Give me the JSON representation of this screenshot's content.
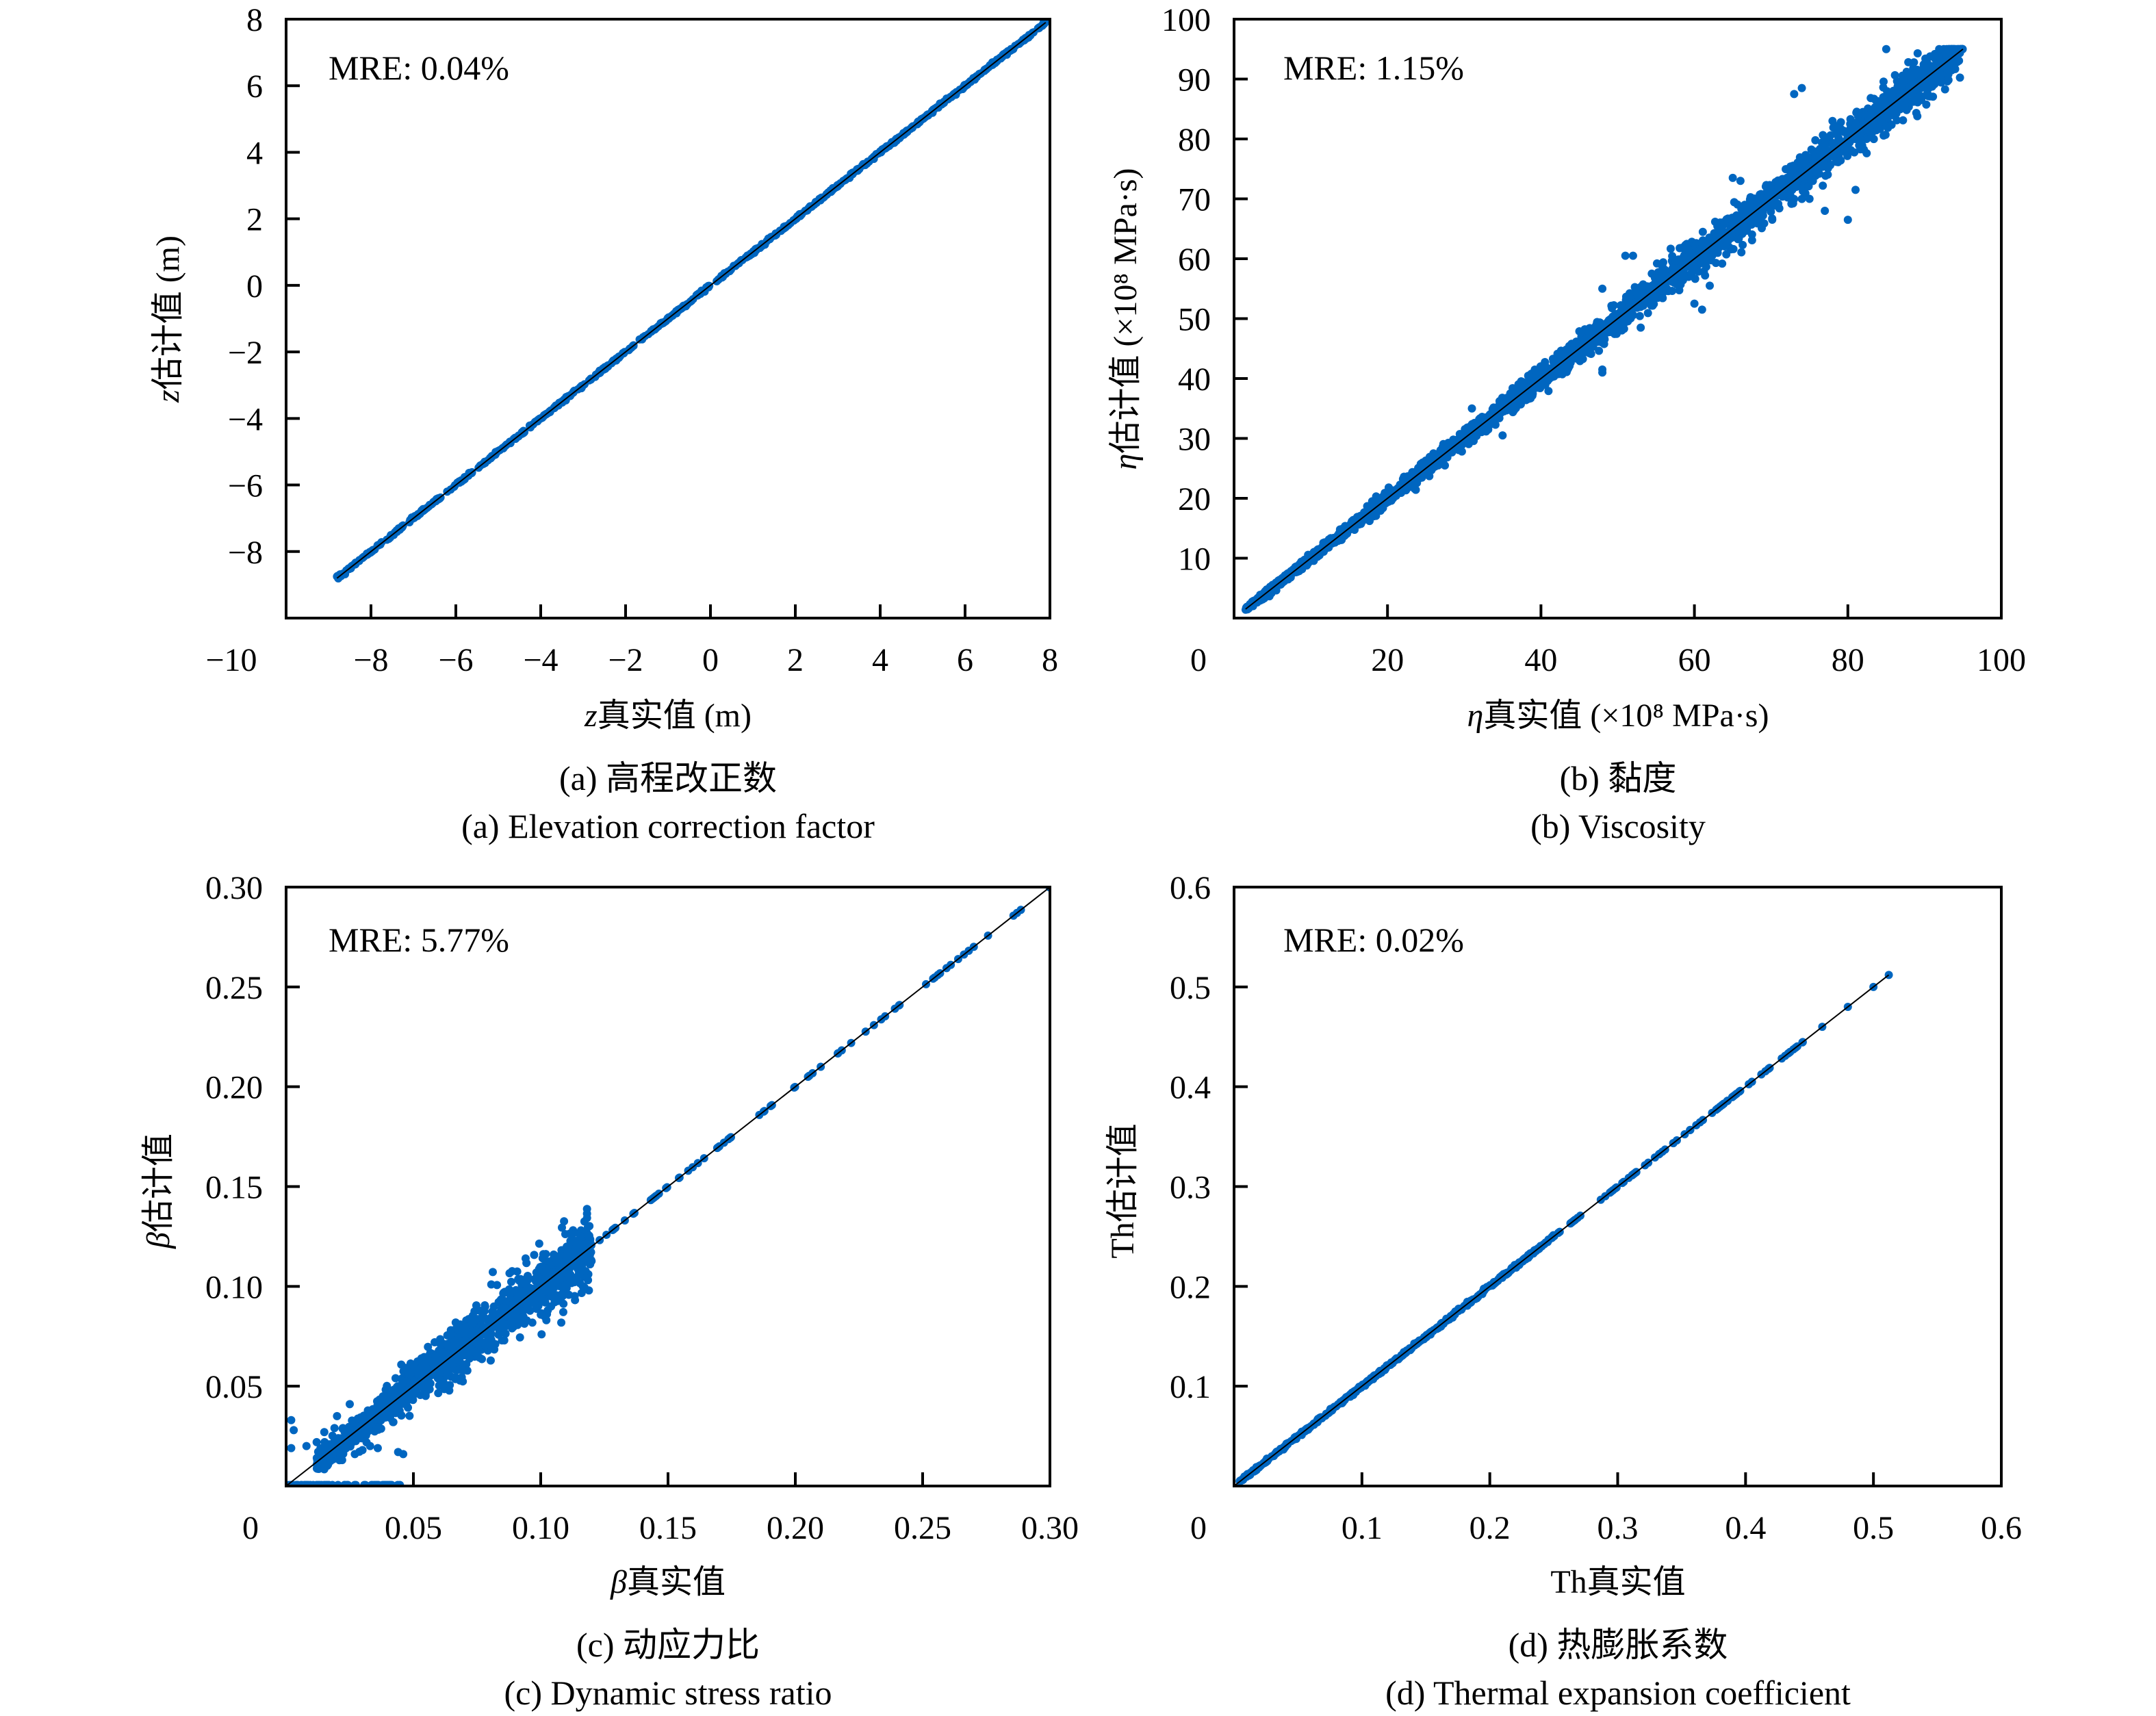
{
  "point_color": "#0066C0",
  "line_color": "#000000",
  "chart_data": [
    {
      "panel": "a",
      "type": "scatter",
      "annotation": "MRE: 0.04%",
      "xlabel_var": "z",
      "xlabel_rest": "真实值 (m)",
      "ylabel_var": "z",
      "ylabel_rest": "估计值 (m)",
      "caption_cn": "(a) 高程改正数",
      "caption_en": "(a) Elevation correction factor",
      "xlim": [
        -10,
        8
      ],
      "ylim": [
        -10,
        8
      ],
      "xticks": [
        "−10",
        "−8",
        "−6",
        "−4",
        "−2",
        "0",
        "2",
        "4",
        "6",
        "8"
      ],
      "xtick_values": [
        -10,
        -8,
        -6,
        -4,
        -2,
        0,
        2,
        4,
        6,
        8
      ],
      "yticks": [
        "−8",
        "−6",
        "−4",
        "−2",
        "0",
        "2",
        "4",
        "6",
        "8"
      ],
      "ytick_values": [
        -8,
        -6,
        -4,
        -2,
        0,
        2,
        4,
        6,
        8
      ],
      "identity_line": [
        -8.8,
        7.9
      ],
      "points": {
        "x_range": [
          -8.8,
          7.9
        ],
        "noise_abs": 0.02,
        "noise_rel": 0,
        "count": 700,
        "clip_max": null
      },
      "outliers": [
        [
          -8.8,
          -8.75
        ],
        [
          7.85,
          7.9
        ]
      ],
      "floor_points": null,
      "decimals": 0
    },
    {
      "panel": "b",
      "type": "scatter",
      "annotation": "MRE: 1.15%",
      "xlabel_var": "η",
      "xlabel_rest": "真实值 (×10⁸ MPa·s)",
      "ylabel_var": "η",
      "ylabel_rest": "估计值 (×10⁸ MPa·s)",
      "caption_cn": "(b) 黏度",
      "caption_en": "(b) Viscosity",
      "xlim": [
        0,
        100
      ],
      "ylim": [
        0,
        100
      ],
      "xticks": [
        "0",
        "20",
        "40",
        "60",
        "80",
        "100"
      ],
      "xtick_values": [
        0,
        20,
        40,
        60,
        80,
        100
      ],
      "yticks": [
        "10",
        "20",
        "30",
        "40",
        "50",
        "60",
        "70",
        "80",
        "90",
        "100"
      ],
      "ytick_values": [
        10,
        20,
        30,
        40,
        50,
        60,
        70,
        80,
        90,
        100
      ],
      "identity_line": [
        1.5,
        95
      ],
      "points": {
        "x_range": [
          1.5,
          95
        ],
        "noise_abs": 0.2,
        "noise_rel": 0.02,
        "count": 2600,
        "clip_max": 95
      },
      "outliers": [
        [
          85,
          95
        ],
        [
          73,
          87.5
        ],
        [
          74,
          88.5
        ],
        [
          78,
          83
        ],
        [
          65,
          73.5
        ],
        [
          66,
          73
        ],
        [
          80,
          66.5
        ],
        [
          81,
          71.5
        ],
        [
          77,
          68
        ],
        [
          75,
          70
        ],
        [
          51,
          60.5
        ],
        [
          52,
          60.5
        ],
        [
          48,
          55
        ],
        [
          62,
          55.5
        ],
        [
          60,
          52.5
        ],
        [
          61,
          51.5
        ],
        [
          53,
          48.5
        ],
        [
          48,
          41.5
        ],
        [
          48,
          41
        ],
        [
          35,
          30.5
        ],
        [
          31,
          35
        ],
        [
          36,
          37.5
        ],
        [
          40,
          42
        ],
        [
          18,
          19.5
        ]
      ],
      "floor_points": null,
      "decimals": 0
    },
    {
      "panel": "c",
      "type": "scatter",
      "annotation": "MRE: 5.77%",
      "xlabel_var": "β",
      "xlabel_rest": "真实值",
      "ylabel_var": "β",
      "ylabel_rest": "估计值",
      "caption_cn": "(c) 动应力比",
      "caption_en": "(c) Dynamic stress ratio",
      "xlim": [
        0,
        0.3
      ],
      "ylim": [
        0,
        0.3
      ],
      "xticks": [
        "0",
        "0.05",
        "0.10",
        "0.15",
        "0.20",
        "0.25",
        "0.30"
      ],
      "xtick_values": [
        0,
        0.05,
        0.1,
        0.15,
        0.2,
        0.25,
        0.3
      ],
      "yticks": [
        "0.05",
        "0.10",
        "0.15",
        "0.20",
        "0.25",
        "0.30"
      ],
      "ytick_values": [
        0.05,
        0.1,
        0.15,
        0.2,
        0.25,
        0.3
      ],
      "identity_line": [
        0,
        0.3
      ],
      "points": {
        "x_range": [
          0.012,
          0.12
        ],
        "noise_abs": 0.002,
        "noise_rel": 0.06,
        "count": 1300,
        "clip_max": null
      },
      "sparse_points": {
        "x_range": [
          0.12,
          0.3
        ],
        "count": 70
      },
      "outliers": [
        [
          0.002,
          0.033
        ],
        [
          0.003,
          0.028
        ],
        [
          0.002,
          0.019
        ],
        [
          0.008,
          0.02
        ],
        [
          0.012,
          0.022
        ],
        [
          0.015,
          0.027
        ],
        [
          0.019,
          0.029
        ],
        [
          0.02,
          0.035
        ],
        [
          0.025,
          0.041
        ],
        [
          0.017,
          0.014
        ],
        [
          0.022,
          0.013
        ],
        [
          0.027,
          0.016
        ],
        [
          0.03,
          0.018
        ],
        [
          0.033,
          0.02
        ],
        [
          0.036,
          0.019
        ],
        [
          0.044,
          0.017
        ],
        [
          0.046,
          0.016
        ],
        [
          0.042,
          0.032
        ],
        [
          0.048,
          0.047
        ],
        [
          0.058,
          0.061
        ],
        [
          0.043,
          0.054
        ]
      ],
      "floor_points": {
        "x_range": [
          0.001,
          0.045
        ],
        "y": 0.0005,
        "count": 60
      },
      "decimals": 2
    },
    {
      "panel": "d",
      "type": "scatter",
      "annotation": "MRE: 0.02%",
      "xlabel_var": "",
      "xlabel_rest": "Th真实值",
      "ylabel_var": "",
      "ylabel_rest": "Th估计值",
      "caption_cn": "(d) 热膨胀系数",
      "caption_en": "(d) Thermal expansion coefficient",
      "xlim": [
        0,
        0.6
      ],
      "ylim": [
        0,
        0.6
      ],
      "xticks": [
        "0",
        "0.1",
        "0.2",
        "0.3",
        "0.4",
        "0.5",
        "0.6"
      ],
      "xtick_values": [
        0,
        0.1,
        0.2,
        0.3,
        0.4,
        0.5,
        0.6
      ],
      "yticks": [
        "0.1",
        "0.2",
        "0.3",
        "0.4",
        "0.5",
        "0.6"
      ],
      "ytick_values": [
        0.1,
        0.2,
        0.3,
        0.4,
        0.5,
        0.6
      ],
      "identity_line": [
        0,
        0.512
      ],
      "points": {
        "x_range": [
          0.003,
          0.25
        ],
        "noise_abs": 0.0008,
        "noise_rel": 0,
        "count": 500,
        "clip_max": null
      },
      "sparse_points": {
        "x_range": [
          0.25,
          0.45
        ],
        "count": 80
      },
      "outliers": [
        [
          0.46,
          0.46
        ],
        [
          0.48,
          0.48
        ],
        [
          0.5,
          0.5
        ],
        [
          0.512,
          0.512
        ]
      ],
      "floor_points": null,
      "decimals": 1
    }
  ]
}
